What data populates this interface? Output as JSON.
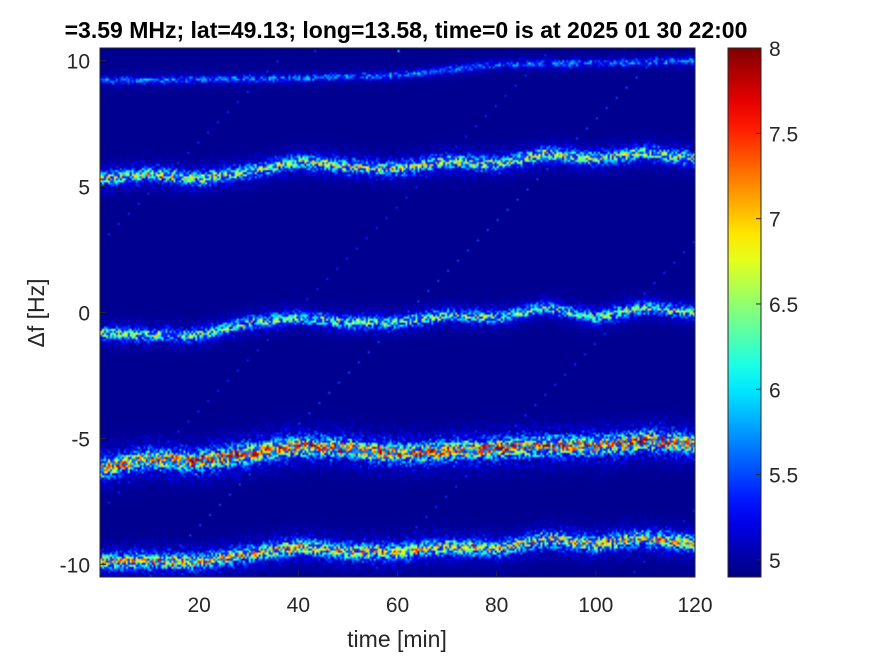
{
  "chart_data": {
    "type": "heatmap",
    "title": "=3.59 MHz;  lat=49.13; long=13.58, time=0 is at 2025 01 30 22:00",
    "xlabel": "time [min]",
    "ylabel": "Δf [Hz]",
    "xlim": [
      0,
      120
    ],
    "ylim": [
      -10.5,
      10.5
    ],
    "xticks": [
      20,
      40,
      60,
      80,
      100,
      120
    ],
    "xtick_labels": [
      "20",
      "40",
      "60",
      "80",
      "100",
      "120"
    ],
    "yticks": [
      10,
      5,
      0,
      -5,
      -10
    ],
    "ytick_labels": [
      "10",
      "5",
      "0",
      "-5",
      "-10"
    ],
    "colormap": "jet",
    "color_range": [
      4.9,
      8
    ],
    "colorbar_ticks": [
      8,
      7.5,
      7,
      6.5,
      6,
      5.5,
      5
    ],
    "colorbar_tick_labels": [
      "8",
      "7.5",
      "7",
      "6.5",
      "6",
      "5.5",
      "5"
    ],
    "background_value": 4.95,
    "traces": [
      {
        "id": "line-9.3",
        "points": [
          [
            0,
            9.2
          ],
          [
            20,
            9.25
          ],
          [
            40,
            9.3
          ],
          [
            60,
            9.4
          ],
          [
            80,
            9.85
          ],
          [
            100,
            9.9
          ],
          [
            120,
            10.0
          ]
        ],
        "peak": 5.8,
        "width": 0.12
      },
      {
        "id": "line-5.5",
        "points": [
          [
            0,
            5.3
          ],
          [
            10,
            5.5
          ],
          [
            20,
            5.3
          ],
          [
            30,
            5.6
          ],
          [
            40,
            6.0
          ],
          [
            50,
            5.8
          ],
          [
            60,
            5.7
          ],
          [
            70,
            6.0
          ],
          [
            80,
            5.9
          ],
          [
            90,
            6.3
          ],
          [
            100,
            6.1
          ],
          [
            110,
            6.35
          ],
          [
            120,
            6.1
          ]
        ],
        "peak": 6.8,
        "width": 0.22
      },
      {
        "id": "line-0",
        "points": [
          [
            0,
            -0.8
          ],
          [
            10,
            -0.9
          ],
          [
            20,
            -0.9
          ],
          [
            30,
            -0.4
          ],
          [
            40,
            -0.2
          ],
          [
            50,
            -0.4
          ],
          [
            60,
            -0.4
          ],
          [
            70,
            -0.1
          ],
          [
            80,
            -0.2
          ],
          [
            90,
            0.2
          ],
          [
            100,
            -0.2
          ],
          [
            110,
            0.2
          ],
          [
            120,
            0.0
          ]
        ],
        "peak": 6.6,
        "width": 0.2
      },
      {
        "id": "line--5.5",
        "points": [
          [
            0,
            -6.2
          ],
          [
            10,
            -5.8
          ],
          [
            20,
            -5.9
          ],
          [
            30,
            -5.6
          ],
          [
            40,
            -5.3
          ],
          [
            50,
            -5.4
          ],
          [
            60,
            -5.6
          ],
          [
            70,
            -5.5
          ],
          [
            80,
            -5.4
          ],
          [
            90,
            -5.3
          ],
          [
            100,
            -5.3
          ],
          [
            110,
            -5.1
          ],
          [
            120,
            -5.2
          ]
        ],
        "peak": 7.6,
        "width": 0.3
      },
      {
        "id": "line--9.7",
        "points": [
          [
            0,
            -9.9
          ],
          [
            10,
            -9.85
          ],
          [
            20,
            -9.9
          ],
          [
            30,
            -9.6
          ],
          [
            40,
            -9.3
          ],
          [
            50,
            -9.5
          ],
          [
            60,
            -9.5
          ],
          [
            70,
            -9.3
          ],
          [
            80,
            -9.4
          ],
          [
            90,
            -9.0
          ],
          [
            100,
            -9.2
          ],
          [
            110,
            -8.95
          ],
          [
            120,
            -9.2
          ]
        ],
        "peak": 7.1,
        "width": 0.25
      }
    ]
  }
}
